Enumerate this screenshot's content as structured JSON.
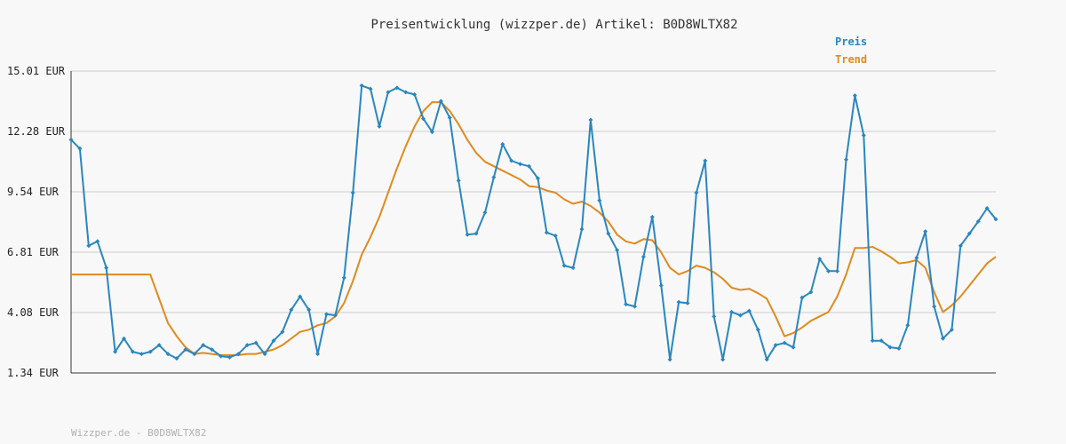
{
  "footer": "Wizzper.de - B0D8WLTX82",
  "chart_data": {
    "type": "line",
    "title": "Preisentwicklung (wizzper.de) Artikel: B0D8WLTX82",
    "xlabel": "",
    "ylabel": "",
    "ylim": [
      1.34,
      15.01
    ],
    "yticks": [
      1.34,
      4.08,
      6.81,
      9.54,
      12.28,
      15.01
    ],
    "ytick_labels": [
      "1.34 EUR",
      "4.08 EUR",
      "6.81 EUR",
      "9.54 EUR",
      "12.28 EUR",
      "15.01 EUR"
    ],
    "grid": true,
    "legend_position": "top-right",
    "series": [
      {
        "name": "Preis",
        "color": "#2a86bf",
        "markers": true,
        "values": [
          11.9,
          11.5,
          7.1,
          7.3,
          6.1,
          2.3,
          2.9,
          2.3,
          2.2,
          2.3,
          2.6,
          2.2,
          2.0,
          2.4,
          2.2,
          2.6,
          2.4,
          2.1,
          2.05,
          2.2,
          2.6,
          2.7,
          2.2,
          2.8,
          3.2,
          4.2,
          4.8,
          4.2,
          2.2,
          4.0,
          3.95,
          5.65,
          9.5,
          14.35,
          14.2,
          12.5,
          14.05,
          14.25,
          14.05,
          13.95,
          12.85,
          12.25,
          13.65,
          12.9,
          10.05,
          7.6,
          7.65,
          8.6,
          10.2,
          11.7,
          10.95,
          10.8,
          10.7,
          10.15,
          7.7,
          7.55,
          6.2,
          6.1,
          7.85,
          12.8,
          9.15,
          7.65,
          6.9,
          4.45,
          4.35,
          6.6,
          8.4,
          5.3,
          1.95,
          4.55,
          4.5,
          9.5,
          10.95,
          3.9,
          1.95,
          4.1,
          3.95,
          4.15,
          3.3,
          1.95,
          2.6,
          2.7,
          2.5,
          4.75,
          5.0,
          6.5,
          5.95,
          5.95,
          11.0,
          13.9,
          12.1,
          2.8,
          2.8,
          2.5,
          2.45,
          3.5,
          6.55,
          7.75,
          4.35,
          2.9,
          3.3,
          7.1,
          7.65,
          8.2,
          8.8,
          8.3
        ]
      },
      {
        "name": "Trend",
        "color": "#e08a1e",
        "markers": false,
        "values": [
          5.8,
          5.8,
          5.8,
          5.8,
          5.8,
          5.8,
          5.8,
          5.8,
          5.8,
          5.8,
          4.7,
          3.6,
          3.0,
          2.5,
          2.2,
          2.25,
          2.2,
          2.15,
          2.15,
          2.15,
          2.2,
          2.2,
          2.3,
          2.4,
          2.6,
          2.9,
          3.2,
          3.3,
          3.5,
          3.6,
          3.9,
          4.5,
          5.5,
          6.7,
          7.5,
          8.4,
          9.5,
          10.6,
          11.6,
          12.5,
          13.2,
          13.6,
          13.6,
          13.2,
          12.6,
          11.9,
          11.3,
          10.9,
          10.7,
          10.5,
          10.3,
          10.1,
          9.8,
          9.75,
          9.6,
          9.5,
          9.2,
          9.0,
          9.1,
          8.9,
          8.6,
          8.2,
          7.6,
          7.3,
          7.2,
          7.4,
          7.35,
          6.8,
          6.1,
          5.8,
          5.95,
          6.2,
          6.1,
          5.9,
          5.6,
          5.2,
          5.1,
          5.15,
          4.95,
          4.7,
          3.9,
          3.0,
          3.15,
          3.4,
          3.7,
          3.9,
          4.1,
          4.8,
          5.8,
          7.0,
          7.0,
          7.05,
          6.85,
          6.6,
          6.3,
          6.35,
          6.45,
          6.1,
          5.0,
          4.1,
          4.4,
          4.8,
          5.3,
          5.8,
          6.3,
          6.6
        ]
      }
    ]
  }
}
